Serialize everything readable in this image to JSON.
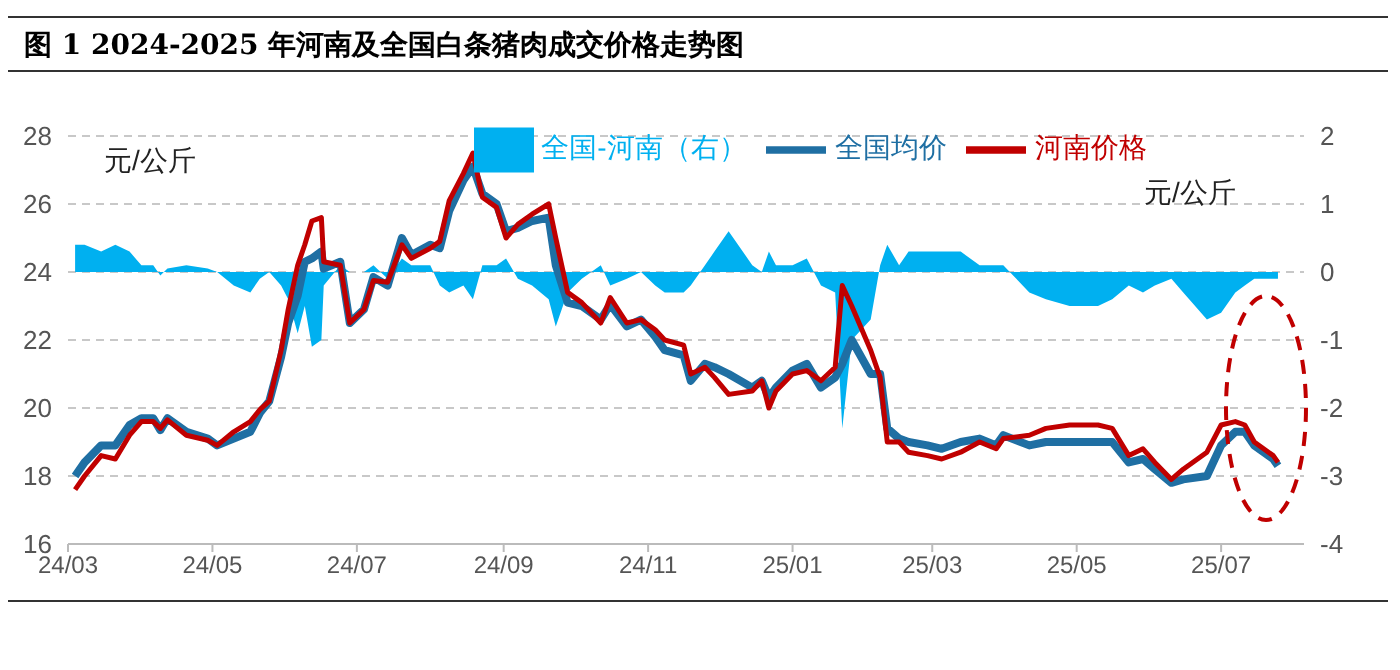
{
  "chart_data": {
    "type": "line",
    "title": "图 1 2024-2025 年河南及全国白条猪肉成交价格走势图",
    "ylabel": "元/公斤",
    "y2label": "元/公斤",
    "x": [
      "2024-03-04",
      "2024-03-08",
      "2024-03-15",
      "2024-03-21",
      "2024-03-27",
      "2024-04-01",
      "2024-04-06",
      "2024-04-09",
      "2024-04-12",
      "2024-04-20",
      "2024-04-29",
      "2024-05-03",
      "2024-05-10",
      "2024-05-17",
      "2024-05-21",
      "2024-05-25",
      "2024-05-30",
      "2024-06-02",
      "2024-06-06",
      "2024-06-09",
      "2024-06-12",
      "2024-06-16",
      "2024-06-17",
      "2024-06-24",
      "2024-06-28",
      "2024-07-04",
      "2024-07-08",
      "2024-07-14",
      "2024-07-20",
      "2024-07-24",
      "2024-08-01",
      "2024-08-05",
      "2024-08-09",
      "2024-08-15",
      "2024-08-19",
      "2024-08-23",
      "2024-08-29",
      "2024-09-02",
      "2024-09-07",
      "2024-09-13",
      "2024-09-20",
      "2024-09-23",
      "2024-09-28",
      "2024-10-04",
      "2024-10-12",
      "2024-10-16",
      "2024-10-23",
      "2024-10-29",
      "2024-11-04",
      "2024-11-08",
      "2024-11-16",
      "2024-11-19",
      "2024-11-25",
      "2024-11-29",
      "2024-12-05",
      "2024-12-15",
      "2024-12-19",
      "2024-12-22",
      "2024-12-25",
      "2025-01-01",
      "2025-01-07",
      "2025-01-13",
      "2025-01-19",
      "2025-01-22",
      "2025-01-26",
      "2025-02-03",
      "2025-02-07",
      "2025-02-10",
      "2025-02-15",
      "2025-02-19",
      "2025-02-27",
      "2025-03-05",
      "2025-03-13",
      "2025-03-21",
      "2025-03-28",
      "2025-03-31",
      "2025-04-11",
      "2025-04-18",
      "2025-04-28",
      "2025-05-10",
      "2025-05-16",
      "2025-05-23",
      "2025-05-29",
      "2025-06-03",
      "2025-06-10",
      "2025-06-15",
      "2025-06-25",
      "2025-07-01",
      "2025-07-07",
      "2025-07-11",
      "2025-07-15",
      "2025-07-23",
      "2025-07-25"
    ],
    "series": [
      {
        "name": "全国-河南（右）",
        "type": "area",
        "axis": "y2",
        "color": "#00b0f0",
        "values": [
          0.4,
          0.4,
          0.3,
          0.4,
          0.3,
          0.1,
          0.1,
          -0.05,
          0.05,
          0.1,
          0.05,
          0,
          -0.2,
          -0.3,
          -0.1,
          0,
          -0.2,
          -0.4,
          -0.9,
          -0.5,
          -1.1,
          -1,
          -0.2,
          0.1,
          0,
          0,
          0.1,
          -0.1,
          0.2,
          0.1,
          0.1,
          -0.2,
          -0.3,
          -0.2,
          -0.4,
          0.1,
          0.1,
          0.2,
          -0.1,
          -0.2,
          -0.4,
          -0.8,
          -0.3,
          -0.1,
          0.1,
          -0.2,
          -0.1,
          0,
          -0.2,
          -0.3,
          -0.3,
          -0.2,
          0.1,
          0.3,
          0.6,
          0.1,
          0,
          0.3,
          0.1,
          0.1,
          0.2,
          -0.2,
          -0.3,
          -2.3,
          -1,
          -0.7,
          0.1,
          0.4,
          0.1,
          0.3,
          0.3,
          0.3,
          0.3,
          0.1,
          0.1,
          0.1,
          -0.3,
          -0.4,
          -0.5,
          -0.5,
          -0.4,
          -0.2,
          -0.3,
          -0.2,
          -0.1,
          -0.3,
          -0.7,
          -0.6,
          -0.3,
          -0.2,
          -0.1,
          -0.1,
          -0.1
        ]
      },
      {
        "name": "全国均价",
        "color": "#1f6fa3",
        "values": [
          18,
          18.4,
          18.9,
          18.9,
          19.5,
          19.7,
          19.7,
          19.35,
          19.7,
          19.3,
          19.1,
          18.9,
          19.1,
          19.3,
          19.85,
          20.2,
          21.5,
          22.5,
          23.3,
          24.3,
          24.4,
          24.6,
          24.1,
          24.3,
          22.5,
          22.9,
          23.85,
          23.6,
          25,
          24.5,
          24.8,
          24.7,
          25.8,
          26.7,
          27.1,
          26.3,
          26,
          25.2,
          25.3,
          25.5,
          25.6,
          24.2,
          23.1,
          23,
          22.6,
          23.05,
          22.4,
          22.6,
          22.1,
          21.7,
          21.55,
          20.8,
          21.3,
          21.2,
          21,
          20.6,
          20.8,
          20.3,
          20.6,
          21.1,
          21.3,
          20.6,
          20.9,
          21.3,
          22,
          21,
          21,
          19.4,
          19.1,
          19,
          18.9,
          18.8,
          19,
          19.1,
          18.9,
          19.2,
          18.9,
          19,
          19,
          19,
          19,
          18.4,
          18.5,
          18.2,
          17.8,
          17.9,
          18,
          18.9,
          19.3,
          19.3,
          18.9,
          18.5,
          18.3
        ]
      },
      {
        "name": "河南价格",
        "color": "#c00000",
        "values": [
          17.6,
          18,
          18.6,
          18.5,
          19.2,
          19.6,
          19.6,
          19.4,
          19.65,
          19.2,
          19.05,
          18.9,
          19.3,
          19.6,
          19.95,
          20.2,
          21.7,
          22.9,
          24.2,
          24.8,
          25.5,
          25.6,
          24.3,
          24.2,
          22.5,
          22.9,
          23.75,
          23.7,
          24.8,
          24.4,
          24.7,
          24.9,
          26.1,
          26.9,
          27.5,
          26.2,
          25.9,
          25,
          25.4,
          25.7,
          26,
          25,
          23.4,
          23.1,
          22.5,
          23.25,
          22.5,
          22.6,
          22.3,
          22,
          21.85,
          21,
          21.2,
          20.9,
          20.4,
          20.5,
          20.8,
          20,
          20.5,
          21,
          21.1,
          20.8,
          21.2,
          23.6,
          23,
          21.7,
          20.9,
          19,
          19,
          18.7,
          18.6,
          18.5,
          18.7,
          19,
          18.8,
          19.1,
          19.2,
          19.4,
          19.5,
          19.5,
          19.4,
          18.6,
          18.8,
          18.4,
          17.9,
          18.2,
          18.7,
          19.5,
          19.6,
          19.5,
          19,
          18.6,
          18.4
        ]
      }
    ],
    "xlim": [
      "2024-03-01",
      "2025-08-05"
    ],
    "xticks": [
      {
        "value": "2024-03-01",
        "label": "24/03"
      },
      {
        "value": "2024-05-01",
        "label": "24/05"
      },
      {
        "value": "2024-07-01",
        "label": "24/07"
      },
      {
        "value": "2024-09-01",
        "label": "24/09"
      },
      {
        "value": "2024-11-01",
        "label": "24/11"
      },
      {
        "value": "2025-01-01",
        "label": "25/01"
      },
      {
        "value": "2025-03-01",
        "label": "25/03"
      },
      {
        "value": "2025-05-01",
        "label": "25/05"
      },
      {
        "value": "2025-07-01",
        "label": "25/07"
      }
    ],
    "ylim": [
      16,
      28
    ],
    "yticks": [
      16,
      18,
      20,
      22,
      24,
      26,
      28
    ],
    "y2lim": [
      -4,
      2
    ],
    "y2ticks": [
      -4,
      -3,
      -2,
      -1,
      0,
      1,
      2
    ],
    "grid": "y",
    "legend": "top",
    "marker": "none",
    "line_style": "solid"
  }
}
